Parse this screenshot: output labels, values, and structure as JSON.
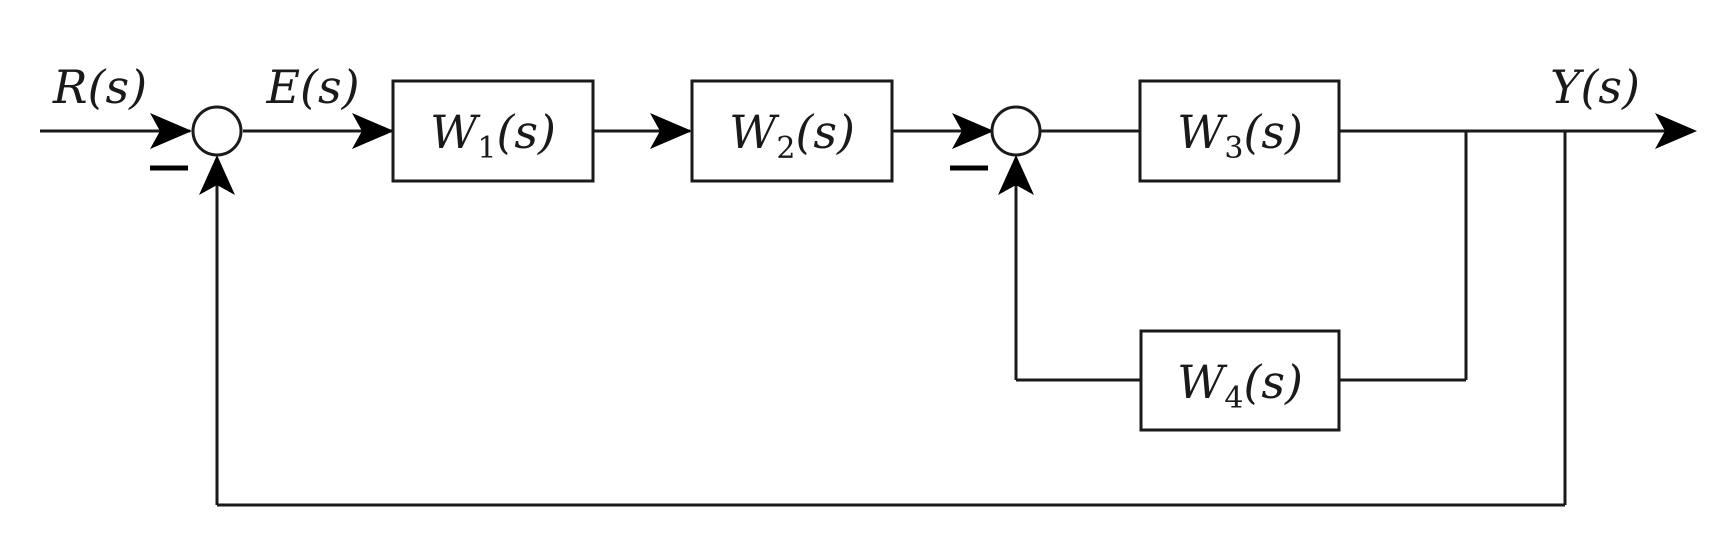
{
  "signals": {
    "input": {
      "symbol": "R",
      "arg": "(s)"
    },
    "error": {
      "symbol": "E",
      "arg": "(s)"
    },
    "output": {
      "symbol": "Y",
      "arg": "(s)"
    }
  },
  "blocks": [
    {
      "symbol": "W",
      "index": "1",
      "arg": "(s)"
    },
    {
      "symbol": "W",
      "index": "2",
      "arg": "(s)"
    },
    {
      "symbol": "W",
      "index": "3",
      "arg": "(s)"
    },
    {
      "symbol": "W",
      "index": "4",
      "arg": "(s)"
    }
  ],
  "summing_junctions": [
    {
      "feedback_sign": "negative"
    },
    {
      "feedback_sign": "negative"
    }
  ]
}
